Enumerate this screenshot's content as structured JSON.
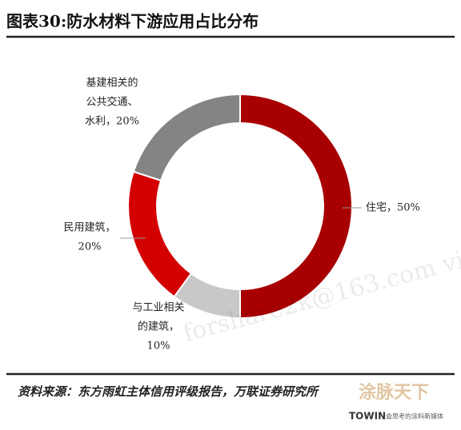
{
  "chart_data": {
    "type": "donut",
    "title": "图表30:防水材料下游应用占比分布",
    "values": [
      50,
      10,
      20,
      20
    ],
    "colors": [
      "#a80000",
      "#c8c8c8",
      "#d40000",
      "#848484"
    ],
    "labels": [
      [
        "住宅，50%"
      ],
      [
        "与工业相关",
        "的建筑，",
        "10%"
      ],
      [
        "民用建筑，",
        "20%"
      ],
      [
        "基建相关的",
        "公共交通、",
        "水利，20%"
      ]
    ],
    "source": "资料来源：东方雨虹主体信用评级报告，万联证券研究所",
    "watermark": "forshare2k@163.com vi",
    "logo": {
      "brand": "涂脉天下",
      "name": "TOWIN",
      "slogan": "会思考的涂料新媒体"
    }
  }
}
